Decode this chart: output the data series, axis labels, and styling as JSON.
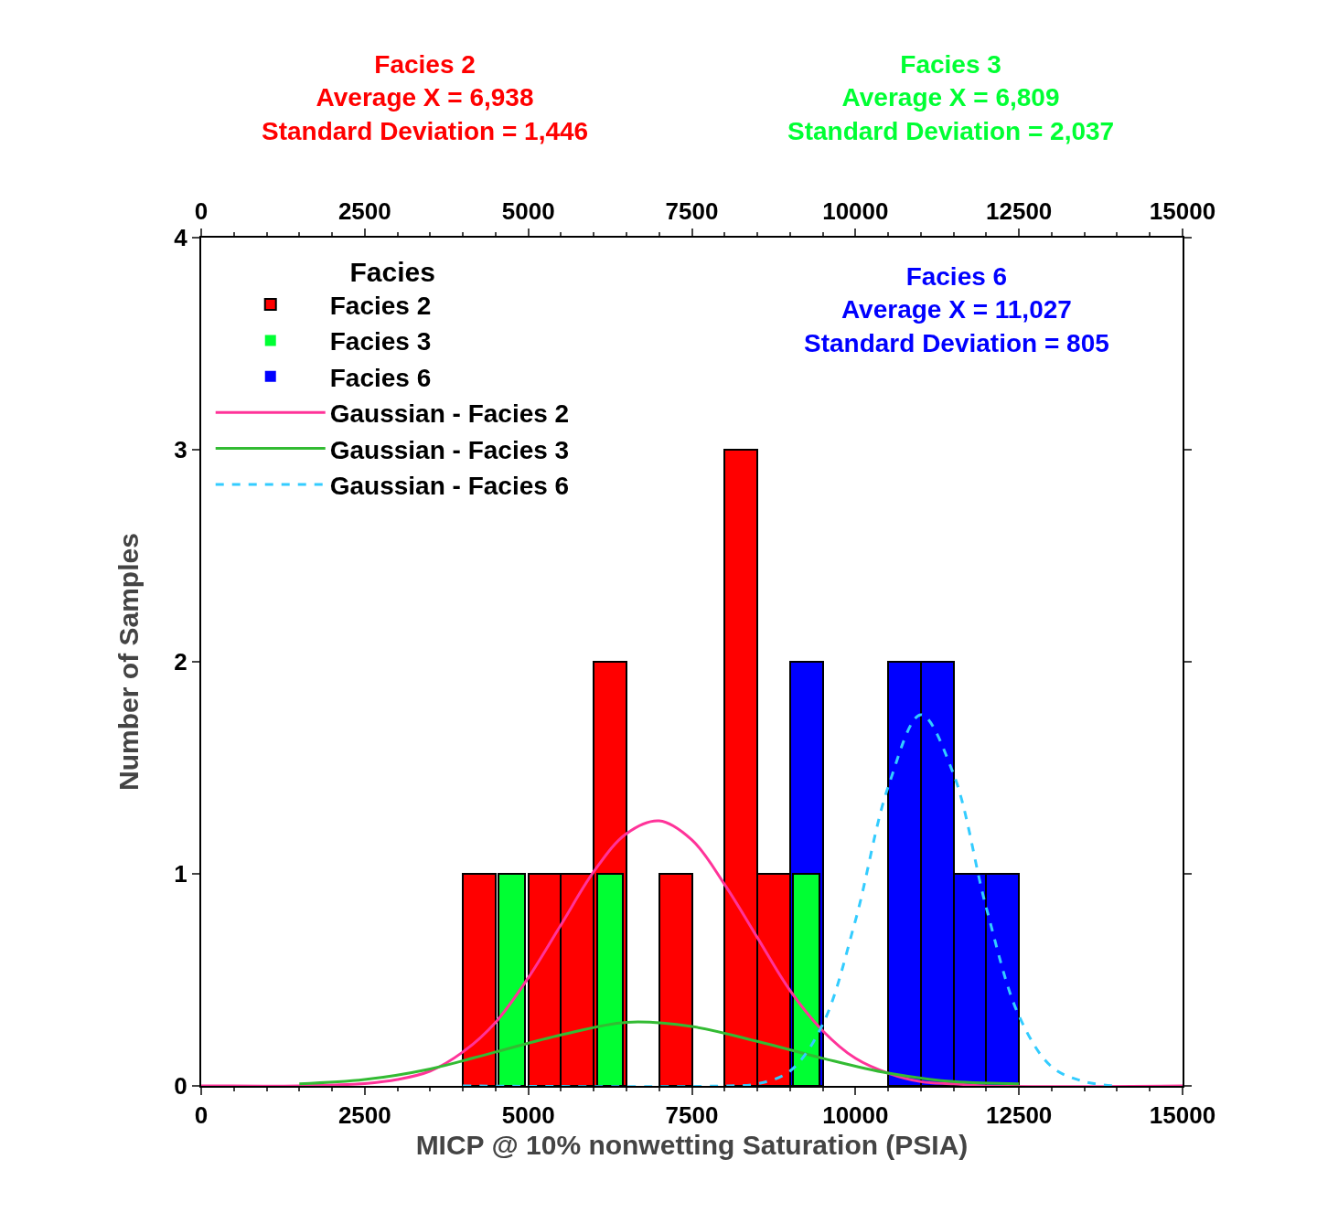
{
  "chart_data": {
    "type": "histogram",
    "xlabel": "MICP @ 10% nonwetting Saturation (PSIA)",
    "ylabel": "Number of Samples",
    "legend_title": "Facies",
    "bins": [
      4000,
      4500,
      5000,
      5500,
      6000,
      6500,
      7000,
      7500,
      8000,
      8500,
      9000,
      9500,
      10000,
      10500,
      11000,
      11500,
      12000,
      12500
    ],
    "series": [
      {
        "name": "Facies 2",
        "color": "#ff0000",
        "values": [
          1,
          0,
          1,
          1,
          2,
          0,
          1,
          0,
          3,
          1,
          0,
          0,
          0,
          0,
          0,
          0,
          0
        ]
      },
      {
        "name": "Facies 3",
        "color": "#00ff33",
        "values": [
          0,
          1,
          0,
          0,
          1,
          0,
          0,
          0,
          0,
          0,
          1,
          0,
          0,
          0,
          0,
          0,
          0
        ]
      },
      {
        "name": "Facies 6",
        "color": "#0000ff",
        "values": [
          0,
          0,
          0,
          0,
          0,
          0,
          0,
          0,
          0,
          0,
          2,
          0,
          0,
          2,
          2,
          1,
          1
        ]
      },
      {
        "name": "Gaussian - Facies 2",
        "type": "line",
        "color": "#ff3399",
        "line_style": "solid",
        "x": [
          0,
          1500,
          2000,
          2500,
          3000,
          3500,
          4000,
          4500,
          5000,
          5500,
          6000,
          6500,
          7000,
          7500,
          8000,
          8500,
          9000,
          9500,
          10000,
          10500,
          11000,
          11500,
          12000,
          15000
        ],
        "values": [
          0,
          0,
          0.004,
          0.011,
          0.03,
          0.07,
          0.16,
          0.3,
          0.51,
          0.76,
          1.01,
          1.19,
          1.25,
          1.16,
          0.95,
          0.7,
          0.45,
          0.26,
          0.13,
          0.06,
          0.02,
          0.01,
          0,
          0
        ]
      },
      {
        "name": "Gaussian - Facies 3",
        "type": "line",
        "color": "#33bb33",
        "line_style": "solid",
        "x": [
          1500,
          2500,
          3500,
          4500,
          5500,
          6500,
          7500,
          8500,
          9500,
          10500,
          11500,
          12500
        ],
        "values": [
          0.01,
          0.03,
          0.08,
          0.16,
          0.24,
          0.3,
          0.28,
          0.21,
          0.13,
          0.06,
          0.02,
          0.01
        ]
      },
      {
        "name": "Gaussian - Facies 6",
        "type": "line",
        "color": "#33ccff",
        "line_style": "dashed",
        "x": [
          4000,
          8000,
          8500,
          9000,
          9500,
          10000,
          10500,
          11000,
          11500,
          12000,
          12500,
          13000,
          13500,
          14000
        ],
        "values": [
          0,
          0,
          0.01,
          0.07,
          0.29,
          0.78,
          1.41,
          1.75,
          1.47,
          0.84,
          0.33,
          0.09,
          0.02,
          0
        ]
      }
    ],
    "annotations": [
      "Facies 2\nAverage X = 6,938\nStandard Deviation = 1,446",
      "Facies 3\nAverage X = 6,809\nStandard Deviation = 2,037",
      "Facies 6\nAverage X = 11,027\nStandard Deviation = 805"
    ],
    "xlim": [
      0,
      15000
    ],
    "xticks": [
      0,
      2500,
      5000,
      7500,
      10000,
      12500,
      15000
    ],
    "x2lim": [
      0,
      15000
    ],
    "x2ticks": [
      0,
      2500,
      5000,
      7500,
      10000,
      12500,
      15000
    ],
    "ylim": [
      0,
      4
    ],
    "yticks": [
      0,
      1,
      2,
      3,
      4
    ],
    "grid": false,
    "legend": "top left"
  }
}
